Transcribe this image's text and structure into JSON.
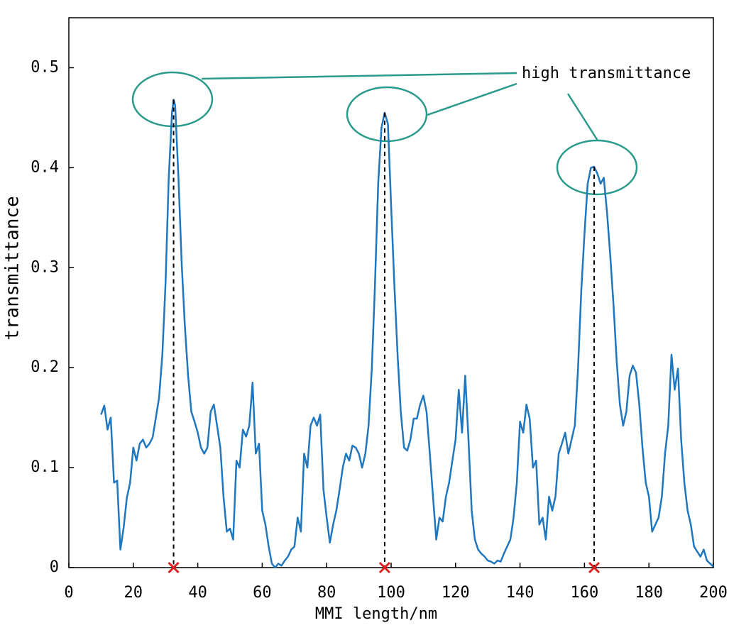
{
  "chart_data": {
    "type": "line",
    "xlabel": "MMI length/nm",
    "ylabel": "transmittance",
    "annotation": "high transmittance",
    "xlim": [
      0,
      200
    ],
    "xticks": [
      0,
      20,
      40,
      60,
      80,
      100,
      120,
      140,
      160,
      180,
      200
    ],
    "ylim": [
      0,
      0.55
    ],
    "yticks": [
      0,
      0.1,
      0.2,
      0.3,
      0.4,
      0.5
    ],
    "series": [
      {
        "color": "#1f77c0",
        "x": [
          10,
          11,
          12,
          13,
          14,
          15,
          16,
          17,
          18,
          19,
          20,
          21,
          22,
          23,
          24,
          25,
          26,
          27,
          28,
          29,
          30,
          31,
          32,
          32.5,
          33,
          34,
          35,
          36,
          37,
          38,
          39,
          40,
          41,
          42,
          43,
          44,
          45,
          46,
          47,
          48,
          49,
          50,
          51,
          52,
          53,
          54,
          55,
          56,
          57,
          58,
          59,
          60,
          61,
          62,
          63,
          64,
          65,
          66,
          67,
          68,
          69,
          70,
          71,
          72,
          73,
          74,
          75,
          76,
          77,
          78,
          79,
          80,
          81,
          82,
          83,
          84,
          85,
          86,
          87,
          88,
          89,
          90,
          91,
          92,
          93,
          94,
          95,
          96,
          97,
          98,
          99,
          100,
          101,
          102,
          103,
          104,
          105,
          106,
          107,
          108,
          109,
          110,
          111,
          112,
          113,
          114,
          115,
          116,
          117,
          118,
          119,
          120,
          121,
          122,
          123,
          124,
          125,
          126,
          127,
          128,
          129,
          130,
          131,
          132,
          133,
          134,
          135,
          136,
          137,
          138,
          139,
          140,
          141,
          142,
          143,
          144,
          145,
          146,
          147,
          148,
          149,
          150,
          151,
          152,
          153,
          154,
          155,
          156,
          157,
          158,
          159,
          160,
          161,
          162,
          163,
          164,
          165,
          166,
          167,
          168,
          169,
          170,
          171,
          172,
          173,
          174,
          175,
          176,
          177,
          178,
          179,
          180,
          181,
          182,
          183,
          184,
          185,
          186,
          187,
          188,
          189,
          190,
          191,
          192,
          193,
          194,
          195,
          196,
          197,
          198,
          199,
          200
        ],
        "values": [
          0.153,
          0.162,
          0.138,
          0.15,
          0.085,
          0.087,
          0.018,
          0.04,
          0.07,
          0.085,
          0.12,
          0.107,
          0.124,
          0.128,
          0.12,
          0.124,
          0.13,
          0.15,
          0.17,
          0.213,
          0.284,
          0.39,
          0.455,
          0.468,
          0.462,
          0.39,
          0.305,
          0.242,
          0.192,
          0.156,
          0.146,
          0.135,
          0.12,
          0.114,
          0.12,
          0.156,
          0.163,
          0.142,
          0.12,
          0.071,
          0.036,
          0.039,
          0.028,
          0.107,
          0.1,
          0.138,
          0.131,
          0.142,
          0.185,
          0.114,
          0.124,
          0.057,
          0.043,
          0.021,
          0.004,
          0,
          0.004,
          0.002,
          0.007,
          0.011,
          0.018,
          0.021,
          0.05,
          0.036,
          0.114,
          0.1,
          0.142,
          0.15,
          0.142,
          0.153,
          0.078,
          0.05,
          0.025,
          0.043,
          0.057,
          0.078,
          0.1,
          0.114,
          0.107,
          0.122,
          0.12,
          0.114,
          0.1,
          0.114,
          0.142,
          0.199,
          0.284,
          0.384,
          0.44,
          0.455,
          0.444,
          0.362,
          0.284,
          0.213,
          0.156,
          0.12,
          0.117,
          0.128,
          0.149,
          0.149,
          0.163,
          0.172,
          0.156,
          0.114,
          0.071,
          0.028,
          0.05,
          0.046,
          0.071,
          0.085,
          0.107,
          0.128,
          0.178,
          0.135,
          0.192,
          0.128,
          0.057,
          0.028,
          0.018,
          0.014,
          0.011,
          0.007,
          0.006,
          0.004,
          0.007,
          0.006,
          0.014,
          0.021,
          0.028,
          0.05,
          0.085,
          0.146,
          0.135,
          0.163,
          0.149,
          0.1,
          0.107,
          0.043,
          0.05,
          0.028,
          0.071,
          0.057,
          0.071,
          0.114,
          0.124,
          0.135,
          0.114,
          0.128,
          0.142,
          0.199,
          0.277,
          0.334,
          0.384,
          0.4,
          0.401,
          0.394,
          0.384,
          0.39,
          0.355,
          0.312,
          0.263,
          0.206,
          0.163,
          0.142,
          0.156,
          0.192,
          0.202,
          0.195,
          0.163,
          0.12,
          0.085,
          0.071,
          0.036,
          0.043,
          0.05,
          0.071,
          0.114,
          0.142,
          0.213,
          0.178,
          0.199,
          0.128,
          0.085,
          0.057,
          0.043,
          0.021,
          0.016,
          0.011,
          0.018,
          0.007,
          0.004,
          0.001
        ]
      }
    ],
    "peaks": {
      "color": "#e02020",
      "x": [
        32.5,
        98,
        163
      ],
      "values": [
        0.468,
        0.455,
        0.401
      ]
    }
  }
}
